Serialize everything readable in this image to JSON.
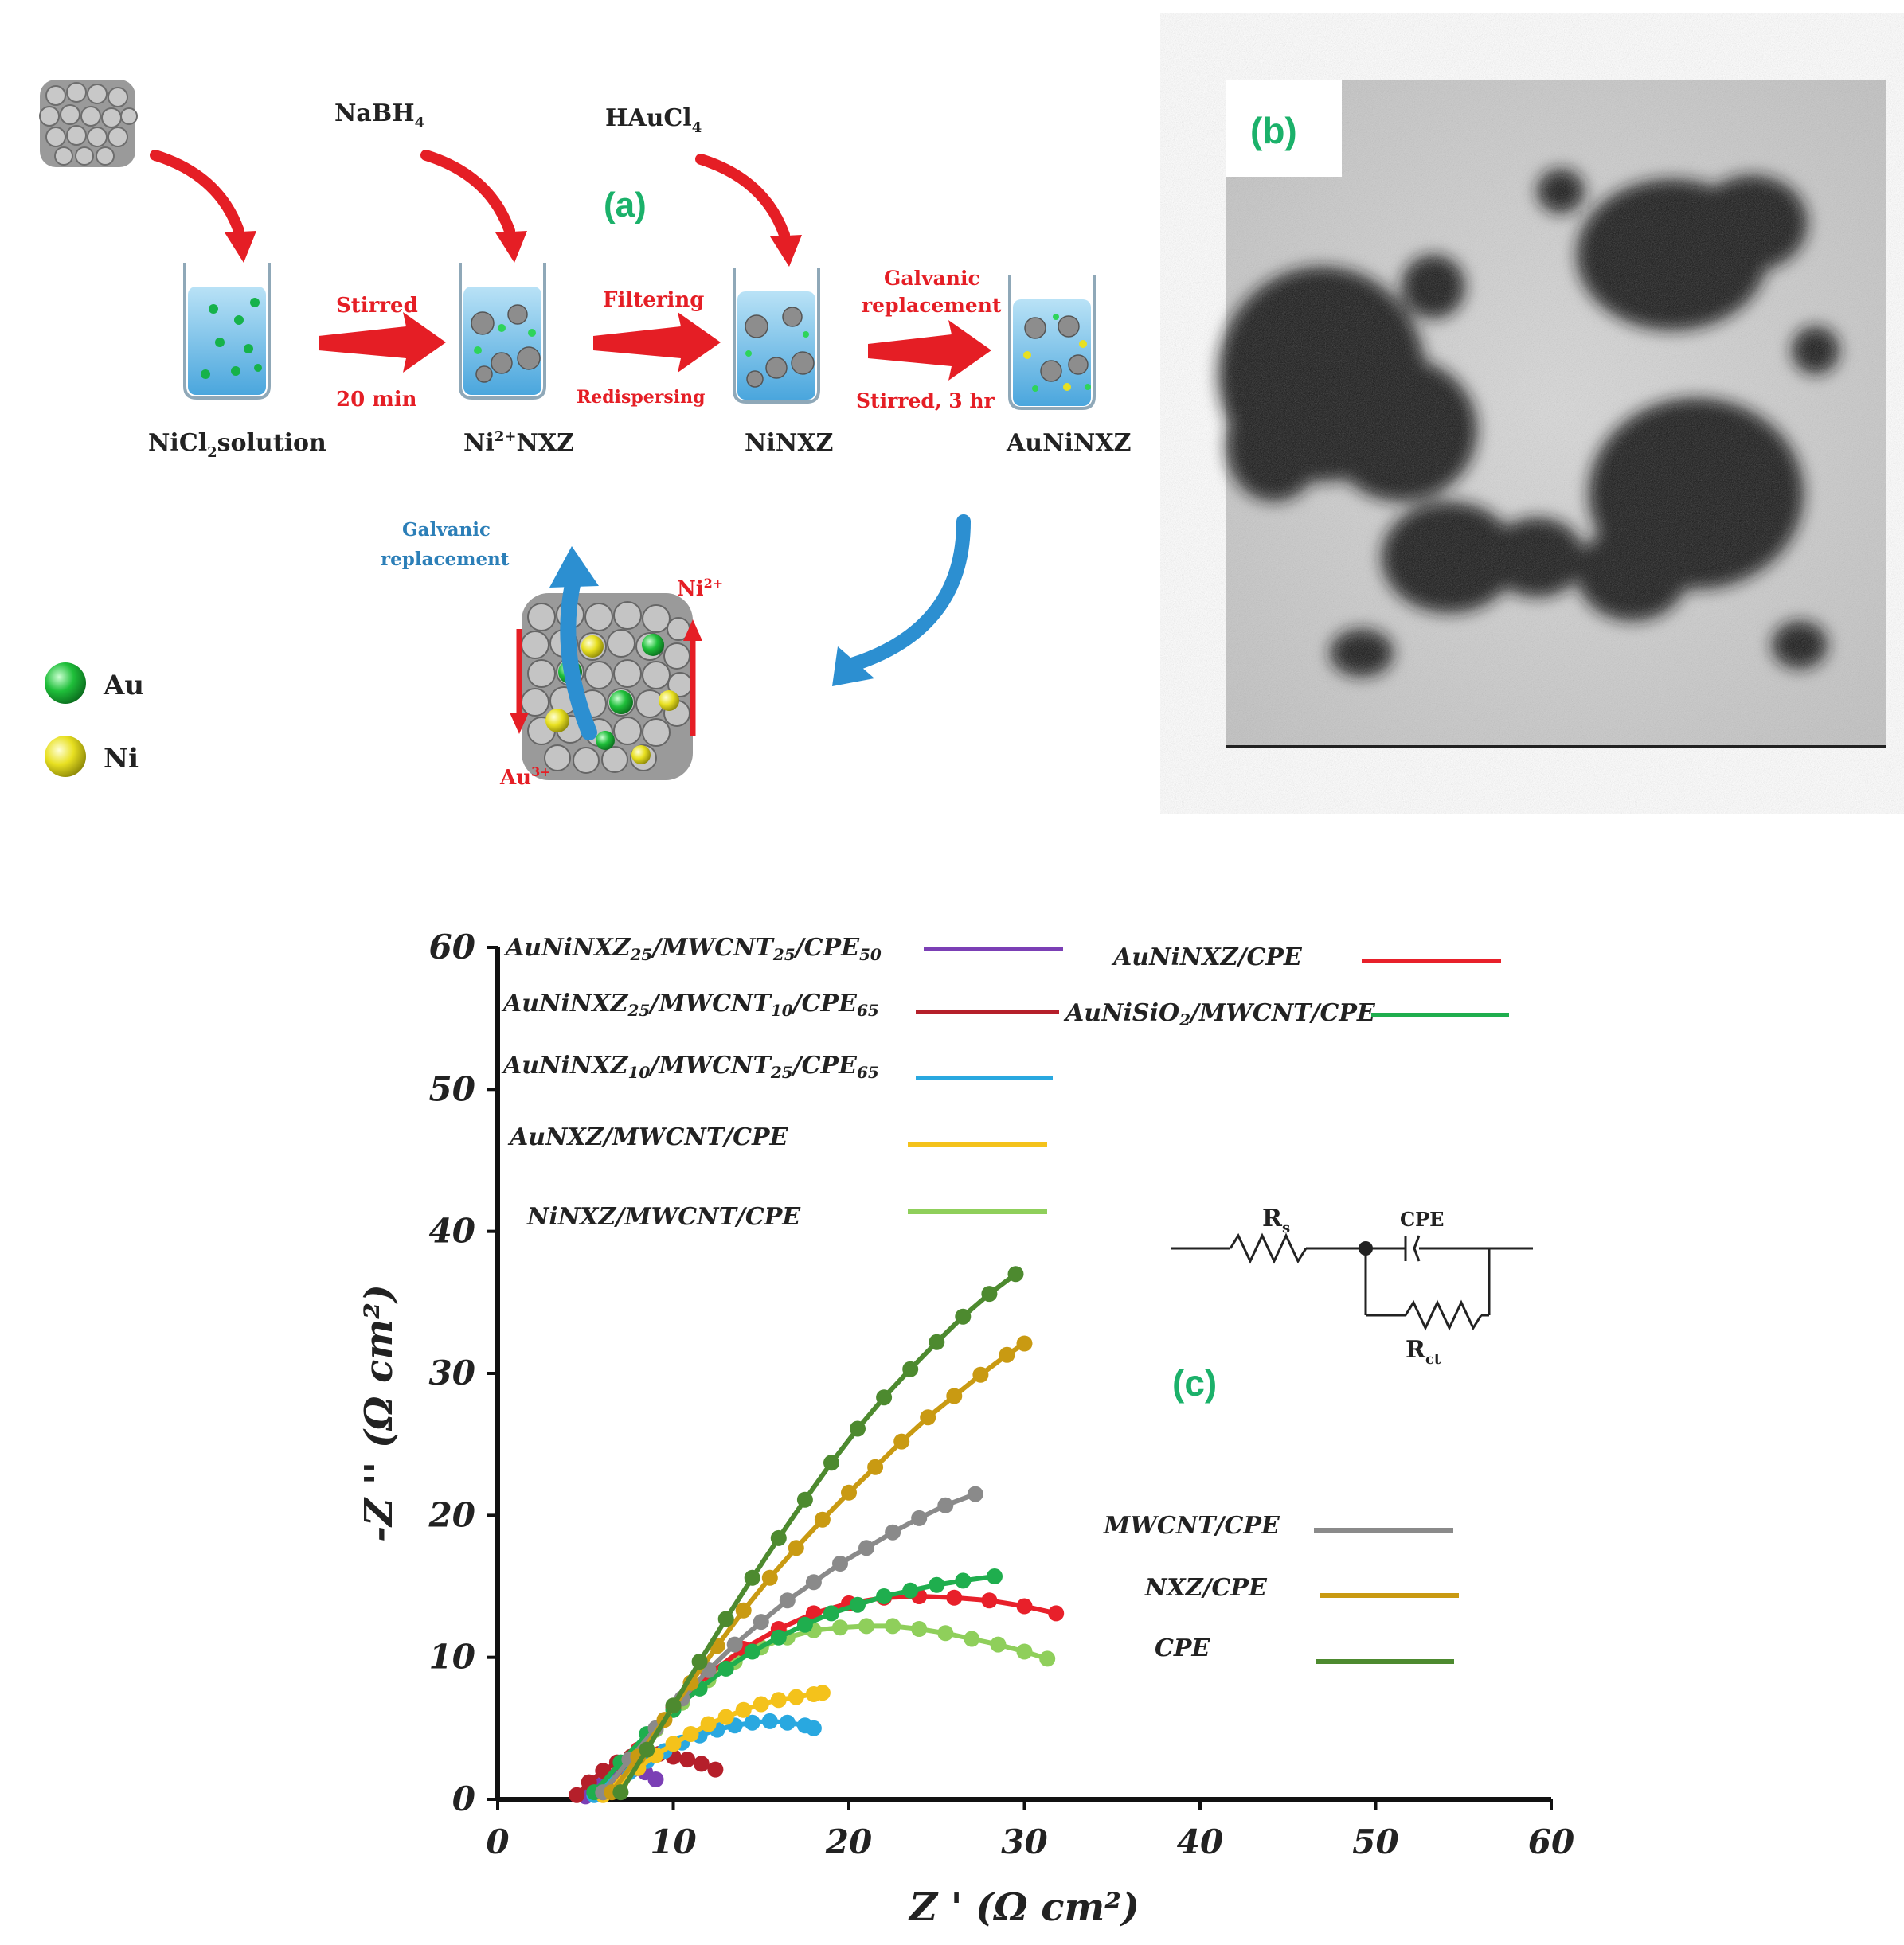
{
  "scheme": {
    "panel_label": "(a)",
    "colors": {
      "arrow_red": "#e51e25",
      "arrow_blue": "#2c8fd1",
      "water": "#7fc6ec",
      "panel_green": "#1bb16a"
    },
    "reagents": [
      {
        "formula": "NaBH",
        "sub": "4"
      },
      {
        "formula": "HAuCl",
        "sub": "4"
      }
    ],
    "steps": [
      {
        "above": "Stirred",
        "below": "20 min"
      },
      {
        "above": "Filtering",
        "below": "Redispersing"
      },
      {
        "above": "Galvanic",
        "above2": "replacement",
        "below": "Stirred, 3 hr"
      }
    ],
    "beakers": [
      {
        "label_main": "NiCl",
        "label_sub": "2",
        "label_rest": "solution"
      },
      {
        "label_main": "Ni",
        "label_sup": "2+",
        "label_rest": "NXZ"
      },
      {
        "label_main": "NiNXZ"
      },
      {
        "label_main": "AuNiNXZ"
      }
    ],
    "mechanism": {
      "blue_label_1": "Galvanic",
      "blue_label_2": "replacement",
      "ni_ion": "Ni",
      "ni_ion_sup": "2+",
      "au_ion": "Au",
      "au_ion_sup": "3+"
    },
    "legend": [
      {
        "label": "Au",
        "color": "#1fbf3a"
      },
      {
        "label": "Ni",
        "color": "#e8e021"
      }
    ]
  },
  "micrograph": {
    "panel_label": "(b)"
  },
  "circuit": {
    "r_s": "R",
    "r_s_sub": "s",
    "cpe": "CPE",
    "r_ct": "R",
    "r_ct_sub": "ct"
  },
  "chart_panel_label": "(c)",
  "chart_data": {
    "type": "scatter",
    "xlabel": "Z ' (Ω  cm²)",
    "ylabel": "-Z '' (Ω cm²)",
    "xlim": [
      0,
      60
    ],
    "ylim": [
      0,
      60
    ],
    "xticks": [
      0,
      10,
      20,
      30,
      40,
      50,
      60
    ],
    "yticks": [
      0,
      10,
      20,
      30,
      40,
      50,
      60
    ],
    "grid": false,
    "series": [
      {
        "name": "AuNiNXZ25/MWCNT25/CPE50",
        "label_html": "AuNiNXZ<tspan font-size='20' dy='6'>25</tspan><tspan dy='-6'>/MWCNT</tspan><tspan font-size='20' dy='6'>25</tspan><tspan dy='-6'>/CPE</tspan><tspan font-size='20' dy='6'>50</tspan>",
        "color": "#7b3fb5",
        "x": [
          5.0,
          5.6,
          6.3,
          7.0,
          7.7,
          8.4,
          9.0
        ],
        "y": [
          0.2,
          1.0,
          1.6,
          2.0,
          2.1,
          1.9,
          1.4
        ]
      },
      {
        "name": "AuNiNXZ25/MWCNT10/CPE65",
        "label_html": "AuNiNXZ<tspan font-size='20' dy='6'>25</tspan><tspan dy='-6'>/MWCNT</tspan><tspan font-size='20' dy='6'>10</tspan><tspan dy='-6'>/CPE</tspan><tspan font-size='20' dy='6'>65</tspan>",
        "color": "#b51f2a",
        "x": [
          4.5,
          5.2,
          6.0,
          6.8,
          7.6,
          8.4,
          9.2,
          10.0,
          10.8,
          11.6,
          12.4
        ],
        "y": [
          0.3,
          1.2,
          2.0,
          2.6,
          3.0,
          3.2,
          3.2,
          3.0,
          2.8,
          2.5,
          2.1
        ]
      },
      {
        "name": "AuNiNXZ10/MWCNT25/CPE65",
        "label_html": "AuNiNXZ<tspan font-size='20' dy='6'>10</tspan><tspan dy='-6'>/MWCNT</tspan><tspan font-size='20' dy='6'>25</tspan><tspan dy='-6'>/CPE</tspan><tspan font-size='20' dy='6'>65</tspan>",
        "color": "#29a8e0",
        "x": [
          5.5,
          6.5,
          7.5,
          8.5,
          9.5,
          10.5,
          11.5,
          12.5,
          13.5,
          14.5,
          15.5,
          16.5,
          17.5,
          18.0
        ],
        "y": [
          0.3,
          1.1,
          1.9,
          2.7,
          3.4,
          4.0,
          4.5,
          4.9,
          5.2,
          5.4,
          5.5,
          5.4,
          5.2,
          5.0
        ]
      },
      {
        "name": "AuNXZ/MWCNT/CPE",
        "label_html": "AuNXZ/MWCNT/CPE",
        "color": "#f4c21b",
        "x": [
          6.0,
          7.0,
          8.0,
          9.0,
          10.0,
          11.0,
          12.0,
          13.0,
          14.0,
          15.0,
          16.0,
          17.0,
          18.0,
          18.5
        ],
        "y": [
          0.3,
          1.2,
          2.2,
          3.1,
          3.9,
          4.6,
          5.3,
          5.8,
          6.3,
          6.7,
          7.0,
          7.2,
          7.4,
          7.5
        ]
      },
      {
        "name": "NiNXZ/MWCNT/CPE",
        "label_html": "NiNXZ/MWCNT/CPE",
        "color": "#8fcf5b",
        "x": [
          6.0,
          7.5,
          9.0,
          10.5,
          12.0,
          13.5,
          15.0,
          16.5,
          18.0,
          19.5,
          21.0,
          22.5,
          24.0,
          25.5,
          27.0,
          28.5,
          30.0,
          31.3
        ],
        "y": [
          0.5,
          2.8,
          4.9,
          6.8,
          8.4,
          9.7,
          10.7,
          11.4,
          11.9,
          12.1,
          12.2,
          12.2,
          12.0,
          11.7,
          11.3,
          10.9,
          10.4,
          9.9
        ]
      },
      {
        "name": "AuNiNXZ/CPE",
        "label_html": "AuNiNXZ/CPE",
        "color": "#e8202a",
        "x": [
          6.0,
          8.0,
          10.0,
          12.0,
          14.0,
          16.0,
          18.0,
          20.0,
          22.0,
          24.0,
          26.0,
          28.0,
          30.0,
          31.8
        ],
        "y": [
          0.5,
          3.5,
          6.5,
          8.8,
          10.6,
          12.0,
          13.1,
          13.8,
          14.2,
          14.3,
          14.2,
          14.0,
          13.6,
          13.1
        ]
      },
      {
        "name": "AuNiSiO2/MWCNT/CPE",
        "label_html": "AuNiSiO<tspan font-size='20' dy='6'>2</tspan><tspan dy='-6'>/MWCNT/CPE</tspan>",
        "color": "#1fae4e",
        "x": [
          5.5,
          7.0,
          8.5,
          10.0,
          11.5,
          13.0,
          14.5,
          16.0,
          17.5,
          19.0,
          20.5,
          22.0,
          23.5,
          25.0,
          26.5,
          28.3
        ],
        "y": [
          0.5,
          2.6,
          4.6,
          6.3,
          7.8,
          9.2,
          10.4,
          11.4,
          12.3,
          13.1,
          13.7,
          14.3,
          14.7,
          15.1,
          15.4,
          15.7
        ]
      },
      {
        "name": "MWCNT/CPE",
        "label_html": "MWCNT/CPE",
        "color": "#8a8a8a",
        "x": [
          6.0,
          7.5,
          9.0,
          10.5,
          12.0,
          13.5,
          15.0,
          16.5,
          18.0,
          19.5,
          21.0,
          22.5,
          24.0,
          25.5,
          27.2
        ],
        "y": [
          0.5,
          2.8,
          5.0,
          7.1,
          9.1,
          10.9,
          12.5,
          14.0,
          15.3,
          16.6,
          17.7,
          18.8,
          19.8,
          20.7,
          21.5
        ]
      },
      {
        "name": "NXZ/CPE",
        "label_html": "NXZ/CPE",
        "color": "#c99a12",
        "x": [
          6.5,
          8.0,
          9.5,
          11.0,
          12.5,
          14.0,
          15.5,
          17.0,
          18.5,
          20.0,
          21.5,
          23.0,
          24.5,
          26.0,
          27.5,
          29.0,
          30.0
        ],
        "y": [
          0.5,
          3.0,
          5.6,
          8.2,
          10.8,
          13.3,
          15.6,
          17.7,
          19.7,
          21.6,
          23.4,
          25.2,
          26.9,
          28.4,
          29.9,
          31.3,
          32.1
        ]
      },
      {
        "name": "CPE",
        "label_html": "CPE",
        "color": "#4d8a2f",
        "x": [
          7.0,
          8.5,
          10.0,
          11.5,
          13.0,
          14.5,
          16.0,
          17.5,
          19.0,
          20.5,
          22.0,
          23.5,
          25.0,
          26.5,
          28.0,
          29.5
        ],
        "y": [
          0.5,
          3.5,
          6.6,
          9.7,
          12.7,
          15.6,
          18.4,
          21.1,
          23.7,
          26.1,
          28.3,
          30.3,
          32.2,
          34.0,
          35.6,
          37.0
        ]
      }
    ]
  }
}
